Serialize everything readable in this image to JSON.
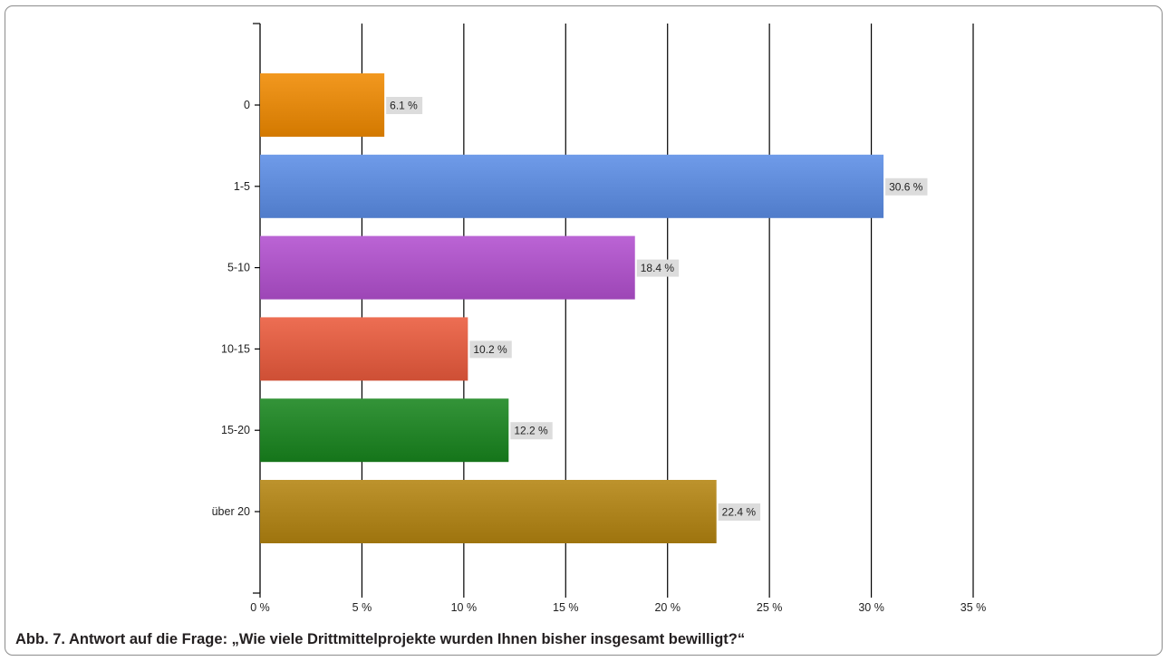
{
  "caption": "Abb. 7. Antwort auf die Frage: „Wie viele Drittmittelprojekte wurden Ihnen bisher insgesamt bewilligt?“",
  "chart_data": {
    "type": "bar",
    "orientation": "horizontal",
    "categories": [
      "0",
      "1-5",
      "5-10",
      "10-15",
      "15-20",
      "über 20"
    ],
    "values": [
      6.1,
      30.6,
      18.4,
      10.2,
      12.2,
      22.4
    ],
    "data_labels": [
      "6.1 %",
      "30.6 %",
      "18.4 %",
      "10.2 %",
      "12.2 %",
      "22.4 %"
    ],
    "colors": [
      "#f08a00",
      "#5b8de6",
      "#b24fcf",
      "#ea5a3c",
      "#18851e",
      "#b48410"
    ],
    "xlim": [
      0,
      35
    ],
    "xticks": [
      0,
      5,
      10,
      15,
      20,
      25,
      30,
      35
    ],
    "xtick_labels": [
      "0 %",
      "5 %",
      "10 %",
      "15 %",
      "20 %",
      "25 %",
      "30 %",
      "35 %"
    ],
    "grid": true,
    "title": "",
    "xlabel": "",
    "ylabel": ""
  }
}
